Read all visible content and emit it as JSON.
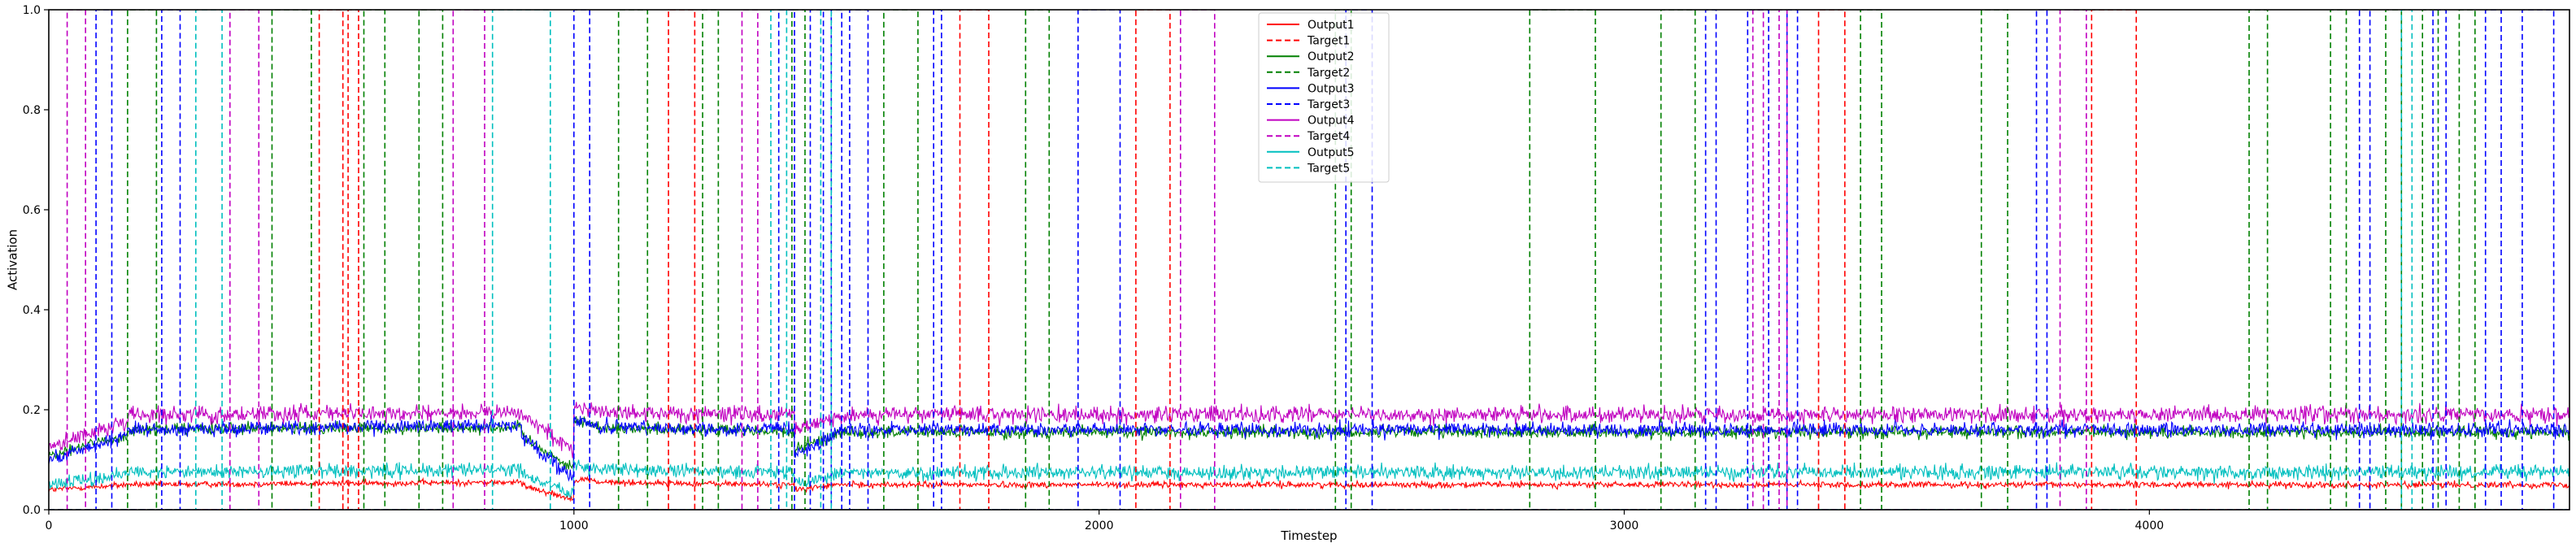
{
  "chart_data": {
    "type": "line",
    "title": "",
    "xlabel": "Timestep",
    "ylabel": "Activation",
    "xlim": [
      0,
      4800
    ],
    "ylim": [
      0,
      1.0
    ],
    "x_ticks": [
      0,
      1000,
      2000,
      3000,
      4000
    ],
    "y_ticks": [
      0.0,
      0.2,
      0.4,
      0.6,
      0.8,
      1.0
    ],
    "grid": false,
    "legend_position": "top-center",
    "series": [
      {
        "name": "Output1",
        "kind": "output",
        "style": "solid",
        "color": "#ff0000",
        "segments": [
          {
            "from": 0,
            "to": 150,
            "start": 0.04,
            "end": 0.05
          },
          {
            "from": 150,
            "to": 900,
            "start": 0.05,
            "end": 0.055
          },
          {
            "from": 900,
            "to": 1000,
            "start": 0.05,
            "end": 0.02
          },
          {
            "from": 1000,
            "to": 1040,
            "start": 0.06,
            "end": 0.06
          },
          {
            "from": 1040,
            "to": 1420,
            "start": 0.055,
            "end": 0.05
          },
          {
            "from": 1420,
            "to": 1500,
            "start": 0.04,
            "end": 0.05
          },
          {
            "from": 1500,
            "to": 4800,
            "start": 0.05,
            "end": 0.05
          }
        ]
      },
      {
        "name": "Target1",
        "kind": "target",
        "style": "dashed",
        "color": "#ff0000",
        "pulses": [
          [
            515,
            560
          ],
          [
            570,
            590
          ],
          [
            1180,
            1230
          ],
          [
            1735,
            1790
          ],
          [
            2070,
            2135
          ],
          [
            3370,
            3420
          ],
          [
            3890,
            3975
          ]
        ]
      },
      {
        "name": "Output2",
        "kind": "output",
        "style": "solid",
        "color": "#008000",
        "segments": [
          {
            "from": 0,
            "to": 150,
            "start": 0.11,
            "end": 0.15
          },
          {
            "from": 150,
            "to": 900,
            "start": 0.16,
            "end": 0.165
          },
          {
            "from": 900,
            "to": 1000,
            "start": 0.15,
            "end": 0.08
          },
          {
            "from": 1000,
            "to": 1040,
            "start": 0.18,
            "end": 0.17
          },
          {
            "from": 1040,
            "to": 1420,
            "start": 0.165,
            "end": 0.155
          },
          {
            "from": 1420,
            "to": 1500,
            "start": 0.12,
            "end": 0.15
          },
          {
            "from": 1500,
            "to": 4800,
            "start": 0.155,
            "end": 0.155
          }
        ]
      },
      {
        "name": "Target2",
        "kind": "target",
        "style": "dashed",
        "color": "#008000",
        "pulses": [
          [
            150,
            205
          ],
          [
            425,
            500
          ],
          [
            600,
            640
          ],
          [
            705,
            750
          ],
          [
            1085,
            1140
          ],
          [
            1245,
            1275
          ],
          [
            1415,
            1440
          ],
          [
            1590,
            1655
          ],
          [
            1860,
            1905
          ],
          [
            2450,
            2480
          ],
          [
            2820,
            2945
          ],
          [
            3070,
            3135
          ],
          [
            3450,
            3490
          ],
          [
            3680,
            3730
          ],
          [
            4190,
            4225
          ],
          [
            4345,
            4375
          ],
          [
            4450,
            4480
          ],
          [
            4520,
            4550
          ],
          [
            4590,
            4620
          ]
        ]
      },
      {
        "name": "Output3",
        "kind": "output",
        "style": "solid",
        "color": "#0000ff",
        "segments": [
          {
            "from": 0,
            "to": 150,
            "start": 0.1,
            "end": 0.15
          },
          {
            "from": 150,
            "to": 900,
            "start": 0.16,
            "end": 0.17
          },
          {
            "from": 900,
            "to": 1000,
            "start": 0.15,
            "end": 0.06
          },
          {
            "from": 1000,
            "to": 1040,
            "start": 0.18,
            "end": 0.17
          },
          {
            "from": 1040,
            "to": 1420,
            "start": 0.165,
            "end": 0.16
          },
          {
            "from": 1420,
            "to": 1500,
            "start": 0.11,
            "end": 0.15
          },
          {
            "from": 1500,
            "to": 4800,
            "start": 0.16,
            "end": 0.16
          }
        ]
      },
      {
        "name": "Target3",
        "kind": "target",
        "style": "dashed",
        "color": "#0000ff",
        "pulses": [
          [
            90,
            120
          ],
          [
            215,
            250
          ],
          [
            1000,
            1030
          ],
          [
            1390,
            1420
          ],
          [
            1450,
            1475
          ],
          [
            1490,
            1510
          ],
          [
            1525,
            1560
          ],
          [
            1685,
            1700
          ],
          [
            1960,
            2040
          ],
          [
            2470,
            2520
          ],
          [
            3155,
            3175
          ],
          [
            3235,
            3275
          ],
          [
            3310,
            3330
          ],
          [
            3785,
            3805
          ],
          [
            4400,
            4420
          ],
          [
            4540,
            4565
          ],
          [
            4640,
            4670
          ],
          [
            4710,
            4770
          ]
        ]
      },
      {
        "name": "Output4",
        "kind": "output",
        "style": "solid",
        "color": "#c000c0",
        "segments": [
          {
            "from": 0,
            "to": 150,
            "start": 0.13,
            "end": 0.17
          },
          {
            "from": 150,
            "to": 900,
            "start": 0.19,
            "end": 0.195
          },
          {
            "from": 900,
            "to": 1000,
            "start": 0.19,
            "end": 0.12
          },
          {
            "from": 1000,
            "to": 1040,
            "start": 0.21,
            "end": 0.2
          },
          {
            "from": 1040,
            "to": 1420,
            "start": 0.195,
            "end": 0.19
          },
          {
            "from": 1420,
            "to": 1500,
            "start": 0.16,
            "end": 0.185
          },
          {
            "from": 1500,
            "to": 4800,
            "start": 0.19,
            "end": 0.19
          }
        ]
      },
      {
        "name": "Target4",
        "kind": "target",
        "style": "dashed",
        "color": "#c000c0",
        "pulses": [
          [
            35,
            70
          ],
          [
            345,
            400
          ],
          [
            770,
            830
          ],
          [
            1320,
            1350
          ],
          [
            2155,
            2220
          ],
          [
            3245,
            3265
          ],
          [
            3295,
            3310
          ],
          [
            3830,
            3880
          ]
        ]
      },
      {
        "name": "Output5",
        "kind": "output",
        "style": "solid",
        "color": "#00bfbf",
        "segments": [
          {
            "from": 0,
            "to": 150,
            "start": 0.05,
            "end": 0.07
          },
          {
            "from": 150,
            "to": 900,
            "start": 0.075,
            "end": 0.08
          },
          {
            "from": 900,
            "to": 1000,
            "start": 0.07,
            "end": 0.03
          },
          {
            "from": 1000,
            "to": 1040,
            "start": 0.09,
            "end": 0.08
          },
          {
            "from": 1040,
            "to": 1420,
            "start": 0.08,
            "end": 0.075
          },
          {
            "from": 1420,
            "to": 1500,
            "start": 0.05,
            "end": 0.07
          },
          {
            "from": 1500,
            "to": 4800,
            "start": 0.075,
            "end": 0.075
          }
        ]
      },
      {
        "name": "Target5",
        "kind": "target",
        "style": "dashed",
        "color": "#00bfbf",
        "pulses": [
          [
            280,
            330
          ],
          [
            845,
            955
          ],
          [
            1375,
            1405
          ],
          [
            1470,
            1490
          ],
          [
            4480,
            4500
          ]
        ]
      }
    ]
  }
}
